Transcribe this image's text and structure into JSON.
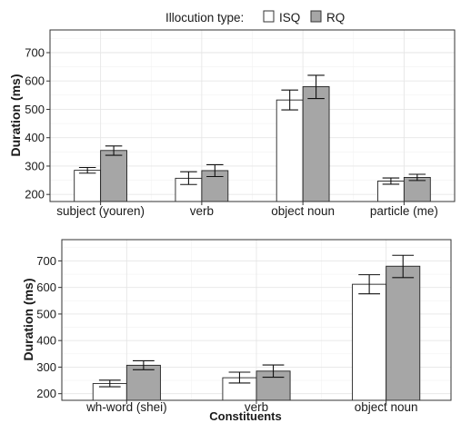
{
  "legend": {
    "title": "Illocution type:",
    "entries": [
      {
        "name": "ISQ",
        "color": "#ffffff"
      },
      {
        "name": "RQ",
        "color": "#a6a6a6"
      }
    ],
    "placement": "top-center"
  },
  "chart_data": [
    {
      "type": "bar",
      "categories": [
        "subject (youren)",
        "verb",
        "object noun",
        "particle (me)"
      ],
      "series": [
        {
          "name": "ISQ",
          "color": "#ffffff",
          "values": [
            285,
            257,
            533,
            247
          ],
          "err_low": [
            275,
            235,
            498,
            236
          ],
          "err_high": [
            295,
            280,
            568,
            258
          ]
        },
        {
          "name": "RQ",
          "color": "#a6a6a6",
          "values": [
            355,
            284,
            580,
            260
          ],
          "err_low": [
            338,
            263,
            538,
            249
          ],
          "err_high": [
            371,
            305,
            620,
            271
          ]
        }
      ],
      "xlabel": "",
      "ylabel": "Duration (ms)",
      "ylim": [
        175,
        780
      ],
      "yticks": [
        200,
        300,
        400,
        500,
        600,
        700
      ],
      "grid": true
    },
    {
      "type": "bar",
      "categories": [
        "wh-word (shei)",
        "verb",
        "object noun"
      ],
      "series": [
        {
          "name": "ISQ",
          "color": "#ffffff",
          "values": [
            238,
            260,
            612
          ],
          "err_low": [
            226,
            240,
            576
          ],
          "err_high": [
            251,
            281,
            648
          ]
        },
        {
          "name": "RQ",
          "color": "#a6a6a6",
          "values": [
            307,
            285,
            680
          ],
          "err_low": [
            290,
            262,
            637
          ],
          "err_high": [
            324,
            308,
            721
          ]
        }
      ],
      "xlabel": "Constituents",
      "ylabel": "Duration (ms)",
      "ylim": [
        175,
        780
      ],
      "yticks": [
        200,
        300,
        400,
        500,
        600,
        700
      ],
      "grid": true
    }
  ]
}
